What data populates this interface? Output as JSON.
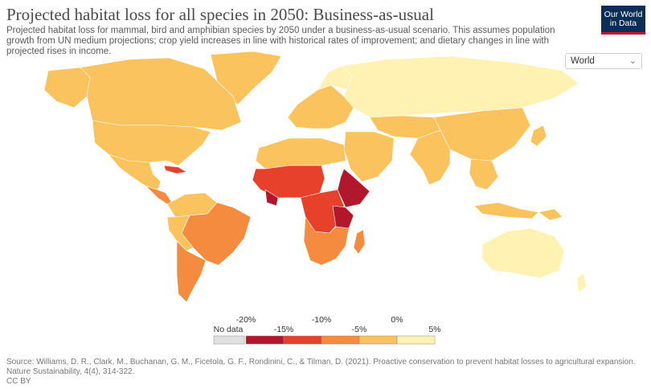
{
  "header": {
    "title": "Projected habitat loss for all species in 2050: Business-as-usual",
    "subtitle": "Projected habitat loss for mammal, bird and amphibian species by 2050 under a business-as-usual scenario. This assumes population growth from UN medium projections; crop yield increases in line with historical rates of improvement; and dietary changes in line with projected rises in income."
  },
  "logo": {
    "line1": "Our World",
    "line2": "in Data"
  },
  "region_selector": {
    "value": "World",
    "icon": "chevron-down-icon"
  },
  "legend": {
    "no_data_label": "No data",
    "top_ticks": [
      "-20%",
      "-10%",
      "0%"
    ],
    "bottom_ticks": [
      "-15%",
      "-5%",
      "5%"
    ],
    "colors": [
      "#b2182b",
      "#e8412b",
      "#f48b3e",
      "#fbc35e",
      "#fff2b3"
    ],
    "no_data_color": "#e0e0e0"
  },
  "footer": {
    "source": "Source: Williams, D. R., Clark, M., Buchanan, G. M., Ficetola, G. F., Rondinini, C., & Tilman, D. (2021). Proactive conservation to prevent habitat losses to agricultural expansion. Nature Sustainability, 4(4), 314-322.",
    "license": "CC BY"
  }
}
